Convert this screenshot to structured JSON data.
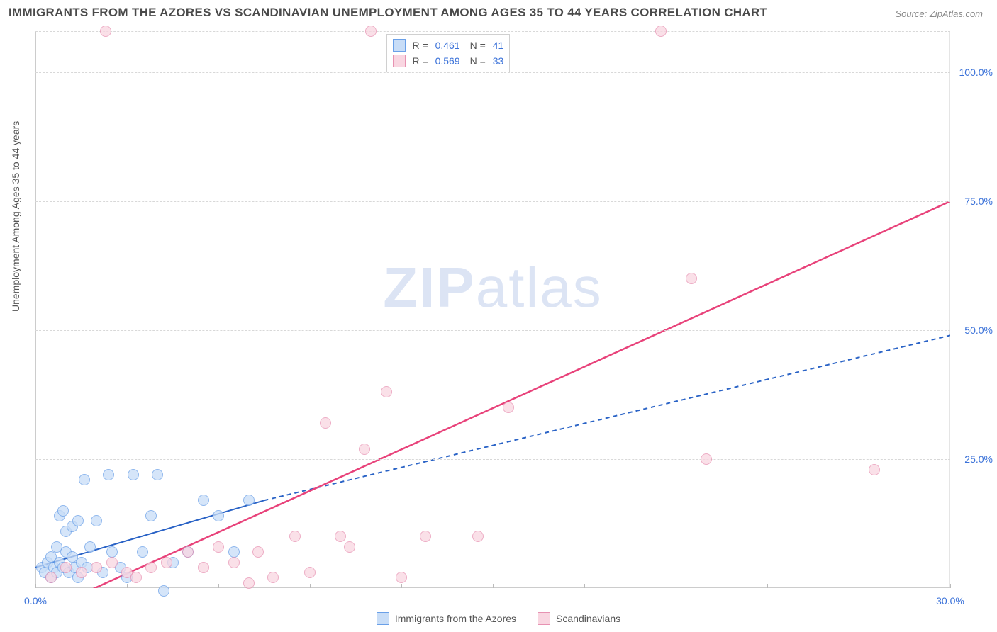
{
  "title": "IMMIGRANTS FROM THE AZORES VS SCANDINAVIAN UNEMPLOYMENT AMONG AGES 35 TO 44 YEARS CORRELATION CHART",
  "source": "Source: ZipAtlas.com",
  "watermark_bold": "ZIP",
  "watermark_light": "atlas",
  "y_axis_label": "Unemployment Among Ages 35 to 44 years",
  "chart": {
    "type": "scatter",
    "xlim": [
      0,
      30
    ],
    "ylim": [
      0,
      108
    ],
    "x_ticks": [
      0,
      3,
      6,
      9,
      12,
      15,
      18,
      21,
      24,
      27,
      30
    ],
    "x_tick_labels": {
      "0": "0.0%",
      "30": "30.0%"
    },
    "y_ticks": [
      25,
      50,
      75,
      100
    ],
    "y_tick_labels": {
      "25": "25.0%",
      "50": "50.0%",
      "75": "75.0%",
      "100": "100.0%"
    },
    "grid_color": "#d8d8d8",
    "background_color": "#ffffff",
    "point_radius": 8,
    "series": [
      {
        "name": "Immigrants from the Azores",
        "fill": "#c8ddf7",
        "stroke": "#6aa0e8",
        "R": "0.461",
        "N": "41",
        "trend": {
          "solid": {
            "x1": 0,
            "y1": 4,
            "x2": 7.5,
            "y2": 17
          },
          "dashed": {
            "x1": 7.5,
            "y1": 17,
            "x2": 30,
            "y2": 49
          },
          "color": "#2a63c6",
          "width": 2
        },
        "points": [
          [
            0.2,
            4
          ],
          [
            0.3,
            3
          ],
          [
            0.4,
            5
          ],
          [
            0.5,
            2
          ],
          [
            0.5,
            6
          ],
          [
            0.6,
            4
          ],
          [
            0.7,
            3
          ],
          [
            0.7,
            8
          ],
          [
            0.8,
            5
          ],
          [
            0.8,
            14
          ],
          [
            0.9,
            4
          ],
          [
            0.9,
            15
          ],
          [
            1.0,
            7
          ],
          [
            1.0,
            11
          ],
          [
            1.1,
            3
          ],
          [
            1.2,
            12
          ],
          [
            1.2,
            6
          ],
          [
            1.3,
            4
          ],
          [
            1.4,
            13
          ],
          [
            1.4,
            2
          ],
          [
            1.5,
            5
          ],
          [
            1.6,
            21
          ],
          [
            1.7,
            4
          ],
          [
            1.8,
            8
          ],
          [
            2.0,
            13
          ],
          [
            2.2,
            3
          ],
          [
            2.4,
            22
          ],
          [
            2.5,
            7
          ],
          [
            2.8,
            4
          ],
          [
            3.0,
            2
          ],
          [
            3.2,
            22
          ],
          [
            3.5,
            7
          ],
          [
            3.8,
            14
          ],
          [
            4.0,
            22
          ],
          [
            4.2,
            -0.5
          ],
          [
            4.5,
            5
          ],
          [
            5.0,
            7
          ],
          [
            5.5,
            17
          ],
          [
            6.0,
            14
          ],
          [
            6.5,
            7
          ],
          [
            7.0,
            17
          ]
        ]
      },
      {
        "name": "Scandinavians",
        "fill": "#f9d6e1",
        "stroke": "#e792b2",
        "R": "0.569",
        "N": "33",
        "trend": {
          "solid": {
            "x1": 1.2,
            "y1": -2,
            "x2": 30,
            "y2": 75
          },
          "color": "#e8427a",
          "width": 2.5
        },
        "points": [
          [
            0.5,
            2
          ],
          [
            1.0,
            4
          ],
          [
            1.5,
            3
          ],
          [
            2.0,
            4
          ],
          [
            2.3,
            108
          ],
          [
            2.5,
            5
          ],
          [
            3.0,
            3
          ],
          [
            3.3,
            2
          ],
          [
            3.8,
            4
          ],
          [
            4.3,
            5
          ],
          [
            5.0,
            7
          ],
          [
            5.5,
            4
          ],
          [
            6.0,
            8
          ],
          [
            6.5,
            5
          ],
          [
            7.0,
            1
          ],
          [
            7.3,
            7
          ],
          [
            7.8,
            2
          ],
          [
            8.5,
            10
          ],
          [
            9.0,
            3
          ],
          [
            9.5,
            32
          ],
          [
            10.0,
            10
          ],
          [
            10.3,
            8
          ],
          [
            10.8,
            27
          ],
          [
            11.0,
            108
          ],
          [
            11.5,
            38
          ],
          [
            12.0,
            2
          ],
          [
            12.8,
            10
          ],
          [
            14.5,
            10
          ],
          [
            15.5,
            35
          ],
          [
            20.5,
            108
          ],
          [
            21.5,
            60
          ],
          [
            22.0,
            25
          ],
          [
            27.5,
            23
          ]
        ]
      }
    ]
  },
  "legend_top": {
    "R_label": "R =",
    "N_label": "N ="
  },
  "legend_bottom": [
    {
      "label": "Immigrants from the Azores",
      "fill": "#c8ddf7",
      "stroke": "#6aa0e8"
    },
    {
      "label": "Scandinavians",
      "fill": "#f9d6e1",
      "stroke": "#e792b2"
    }
  ]
}
